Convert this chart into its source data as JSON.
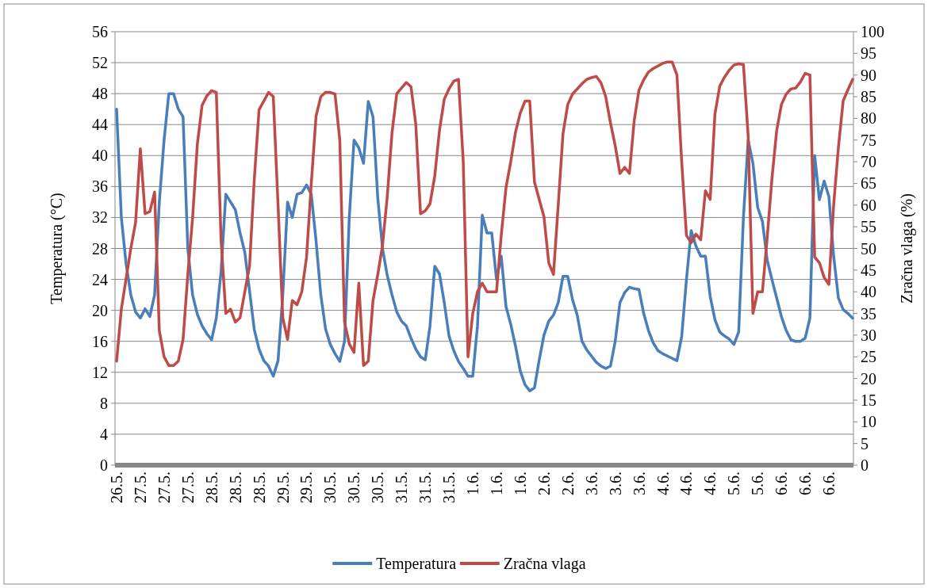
{
  "chart_data": {
    "type": "line",
    "ylabel": "Temperatura (°C)",
    "y2label": "Zračna vlaga (%)",
    "categories": [
      "26.5.",
      null,
      null,
      null,
      null,
      "27.5.",
      null,
      null,
      null,
      null,
      "27.5.",
      null,
      null,
      null,
      null,
      "27.5.",
      null,
      null,
      null,
      null,
      "28.5.",
      null,
      null,
      null,
      null,
      "28.5.",
      null,
      null,
      null,
      null,
      "28.5.",
      null,
      null,
      null,
      null,
      "29.5.",
      null,
      null,
      null,
      null,
      "29.5.",
      null,
      null,
      null,
      null,
      "30.5.",
      null,
      null,
      null,
      null,
      "30.5.",
      null,
      null,
      null,
      null,
      "30.5.",
      null,
      null,
      null,
      null,
      "31.5.",
      null,
      null,
      null,
      null,
      "31.5.",
      null,
      null,
      null,
      null,
      "31.5.",
      null,
      null,
      null,
      null,
      "1.6.",
      null,
      null,
      null,
      null,
      "1.6.",
      null,
      null,
      null,
      null,
      "1.6.",
      null,
      null,
      null,
      null,
      "2.6.",
      null,
      null,
      null,
      null,
      "2.6.",
      null,
      null,
      null,
      null,
      "3.6.",
      null,
      null,
      null,
      null,
      "3.6.",
      null,
      null,
      null,
      null,
      "3.6.",
      null,
      null,
      null,
      null,
      "4.6.",
      null,
      null,
      null,
      null,
      "4.6.",
      null,
      null,
      null,
      null,
      "4.6.",
      null,
      null,
      null,
      null,
      "5.6.",
      null,
      null,
      null,
      null,
      "5.6.",
      null,
      null,
      null,
      null,
      "6.6.",
      null,
      null,
      null,
      null,
      "6.6.",
      null,
      null,
      null,
      null,
      "6.6.",
      null,
      null,
      null,
      null,
      null
    ],
    "series": [
      {
        "name": "Temperatura",
        "color": "#4a7ebb",
        "values": [
          46,
          32,
          26,
          22,
          19.8,
          19,
          20.2,
          19.2,
          22,
          34,
          42,
          48,
          48,
          46,
          45,
          28,
          22,
          19.5,
          18,
          17,
          16.2,
          19,
          25,
          35,
          34,
          33,
          30,
          27.5,
          22.5,
          17.5,
          15,
          13.5,
          12.8,
          11.5,
          13.5,
          22,
          34,
          32,
          35,
          35.2,
          36.2,
          35,
          29,
          22,
          17.6,
          15.6,
          14.4,
          13.4,
          16,
          32,
          42,
          41,
          39,
          47,
          45,
          34.5,
          28,
          24.5,
          22,
          19.8,
          18.6,
          18,
          16.4,
          15,
          14,
          13.6,
          18,
          25.7,
          24.7,
          21,
          16.7,
          14.8,
          13.4,
          12.5,
          11.5,
          11.5,
          18,
          32.3,
          30,
          30,
          24,
          27,
          20.5,
          18.2,
          15.4,
          12.2,
          10.4,
          9.6,
          10,
          13.6,
          16.8,
          18.6,
          19.4,
          21,
          24.4,
          24.4,
          21.4,
          19.4,
          16,
          14.9,
          14.1,
          13.3,
          12.8,
          12.5,
          12.8,
          16,
          21,
          22.3,
          23,
          22.8,
          22.7,
          19.6,
          17.4,
          15.8,
          14.8,
          14.4,
          14.1,
          13.8,
          13.5,
          16.6,
          24,
          30.3,
          28.3,
          27,
          27,
          21.8,
          18.8,
          17.2,
          16.7,
          16.3,
          15.6,
          17.2,
          32,
          42,
          39,
          33.3,
          31.5,
          26.5,
          24,
          21.6,
          19.2,
          17.4,
          16.2,
          16,
          16,
          16.4,
          19,
          40,
          34.3,
          36.7,
          34.7,
          27,
          21.6,
          20.1,
          19.6,
          19
        ]
      },
      {
        "name": "Zračna vlaga",
        "color": "#be4b48",
        "axis": "y2",
        "values": [
          24,
          36,
          43,
          50,
          56,
          73,
          58,
          58.5,
          63,
          31,
          25,
          23,
          23,
          24,
          29,
          44,
          57,
          74,
          83,
          85.2,
          86.4,
          86,
          52,
          35,
          36,
          33,
          34,
          40,
          46,
          66,
          82,
          84,
          86,
          85,
          60,
          34,
          29,
          38,
          37,
          40,
          48,
          65,
          80.5,
          85,
          86,
          86,
          85.6,
          75,
          33,
          28,
          26,
          42,
          23,
          24,
          38,
          44,
          50.7,
          62,
          76.7,
          85.7,
          87,
          88.3,
          87.3,
          78.7,
          58,
          58.7,
          60.3,
          66.7,
          77.3,
          84.4,
          86.8,
          88.6,
          89,
          70,
          25,
          35,
          40,
          42,
          40,
          40,
          40,
          53,
          64,
          70,
          76.8,
          81.2,
          84,
          84,
          65.3,
          61.3,
          57.3,
          46.7,
          44,
          60,
          76.4,
          83.2,
          85.6,
          86.8,
          88,
          89,
          89.4,
          89.7,
          88.2,
          85,
          79,
          73.7,
          67.3,
          68.7,
          67.3,
          79.5,
          86.5,
          88.9,
          90.7,
          91.5,
          92.1,
          92.7,
          93,
          93,
          90,
          70,
          53,
          51.3,
          53.3,
          52,
          63.3,
          61.3,
          81,
          87.4,
          89.5,
          91.1,
          92.3,
          92.6,
          92.4,
          76,
          35,
          40,
          40,
          52.4,
          66,
          77.2,
          83.2,
          85.6,
          86.8,
          87,
          88.4,
          90.4,
          90,
          48,
          46.7,
          43.3,
          41.7,
          60,
          73.3,
          84,
          86.6,
          89
        ]
      }
    ],
    "ylim": [
      0,
      56
    ],
    "yticks": [
      0,
      4,
      8,
      12,
      16,
      20,
      24,
      28,
      32,
      36,
      40,
      44,
      48,
      52,
      56
    ],
    "y2lim": [
      0,
      100
    ],
    "y2ticks": [
      0,
      5,
      10,
      15,
      20,
      25,
      30,
      35,
      40,
      45,
      50,
      55,
      60,
      65,
      70,
      75,
      80,
      85,
      90,
      95,
      100
    ],
    "grid": "y",
    "legend": "bottom"
  }
}
